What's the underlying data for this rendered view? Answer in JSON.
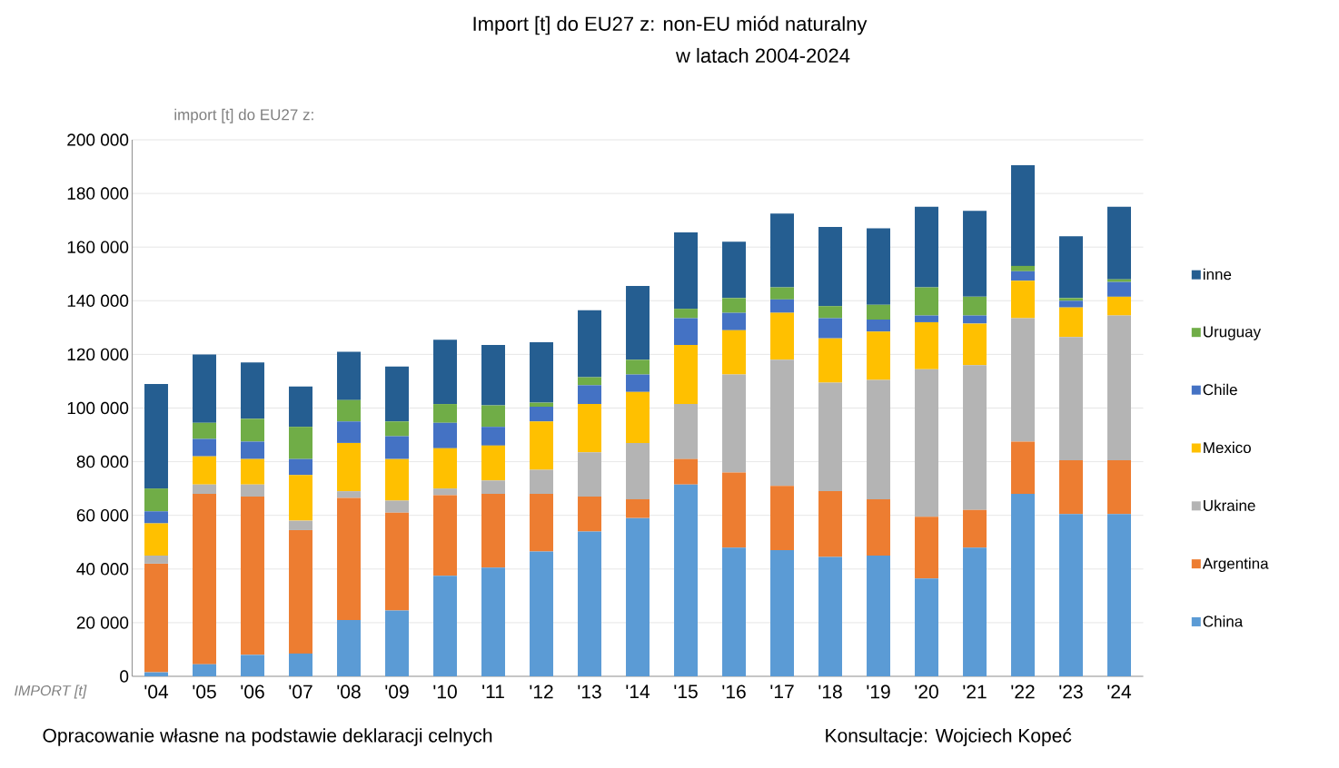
{
  "chart_data": {
    "type": "bar",
    "stacked": true,
    "title": "Import [t] do EU27 z:  non-EU miód naturalny",
    "subtitle": "w latach 2004-2024",
    "ylabel": "import [t] do EU27 z:",
    "categories": [
      "'04",
      "'05",
      "'06",
      "'07",
      "'08",
      "'09",
      "'10",
      "'11",
      "'12",
      "'13",
      "'14",
      "'15",
      "'16",
      "'17",
      "'18",
      "'19",
      "'20",
      "'21",
      "'22",
      "'23",
      "'24"
    ],
    "series": [
      {
        "name": "China",
        "color": "#5b9bd5",
        "values": [
          1500,
          4500,
          8000,
          8500,
          21000,
          24500,
          37500,
          40500,
          46500,
          54000,
          59000,
          71500,
          48000,
          47000,
          44500,
          45000,
          36500,
          48000,
          68000,
          60500,
          60500
        ]
      },
      {
        "name": "Argentina",
        "color": "#ed7d31",
        "values": [
          40500,
          63500,
          59000,
          46000,
          45500,
          36500,
          30000,
          27500,
          21500,
          13000,
          7000,
          9500,
          28000,
          24000,
          24500,
          21000,
          23000,
          14000,
          19500,
          20000,
          20000
        ]
      },
      {
        "name": "Ukraine",
        "color": "#b4b4b4",
        "values": [
          3000,
          3500,
          4500,
          3500,
          2500,
          4500,
          2500,
          5000,
          9000,
          16500,
          21000,
          20500,
          36500,
          47000,
          40500,
          44500,
          55000,
          54000,
          46000,
          46000,
          54000
        ]
      },
      {
        "name": "Mexico",
        "color": "#ffc000",
        "values": [
          12000,
          10500,
          9500,
          17000,
          18000,
          15500,
          15000,
          13000,
          18000,
          18000,
          19000,
          22000,
          16500,
          17500,
          16500,
          18000,
          17500,
          15500,
          14000,
          11000,
          7000
        ]
      },
      {
        "name": "Chile",
        "color": "#4472c4",
        "values": [
          4500,
          6500,
          6500,
          6000,
          8000,
          8500,
          9500,
          7000,
          5500,
          7000,
          6500,
          10000,
          6500,
          5000,
          7500,
          4500,
          2500,
          3000,
          3500,
          2500,
          5500
        ]
      },
      {
        "name": "Uruguay",
        "color": "#70ad47",
        "values": [
          8500,
          6000,
          8500,
          12000,
          8000,
          5500,
          7000,
          8000,
          1500,
          3000,
          5500,
          3500,
          5500,
          4500,
          4500,
          5500,
          10500,
          7000,
          2000,
          1000,
          1000
        ]
      },
      {
        "name": "inne",
        "color": "#255e91",
        "values": [
          39000,
          25500,
          21000,
          15000,
          18000,
          20500,
          24000,
          22500,
          22500,
          25000,
          27500,
          28500,
          21000,
          27500,
          29500,
          28500,
          30000,
          32000,
          37500,
          23000,
          27000
        ]
      }
    ],
    "ylim": [
      0,
      200000
    ],
    "yticks": [
      {
        "value": 0,
        "label": "0"
      },
      {
        "value": 20000,
        "label": "20 000"
      },
      {
        "value": 40000,
        "label": "40 000"
      },
      {
        "value": 60000,
        "label": "60 000"
      },
      {
        "value": 80000,
        "label": "80 000"
      },
      {
        "value": 100000,
        "label": "100 000"
      },
      {
        "value": 120000,
        "label": "120 000"
      },
      {
        "value": 140000,
        "label": "140 000"
      },
      {
        "value": 160000,
        "label": "160 000"
      },
      {
        "value": 180000,
        "label": "180 000"
      },
      {
        "value": 200000,
        "label": "200 000"
      }
    ],
    "grid": "y",
    "legend": "right",
    "annotations": [
      "IMPORT [t]",
      "Opracowanie własne na podstawie deklaracji celnych",
      "Konsultacje: Wojciech Kopeć"
    ]
  }
}
